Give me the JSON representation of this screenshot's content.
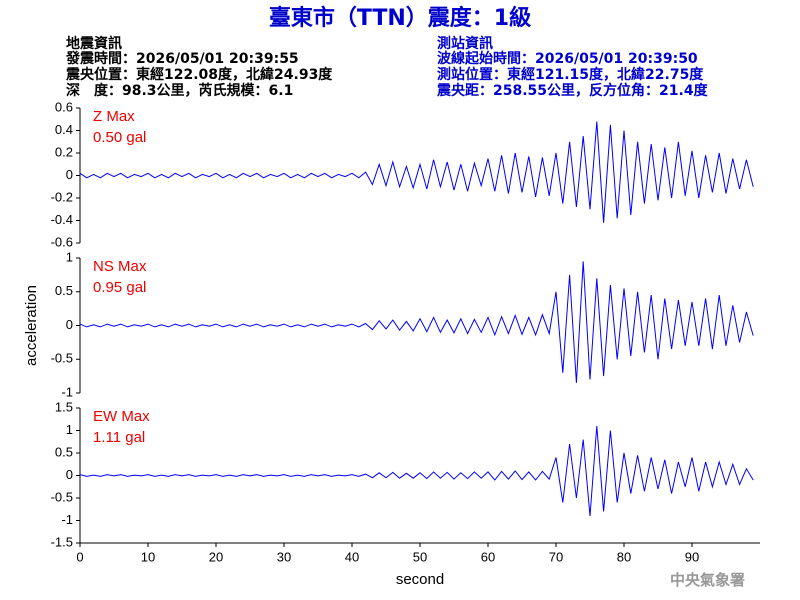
{
  "header": {
    "title": "臺東市（TTN）震度：1級",
    "left": [
      "地震資訊",
      "發震時間：2026/05/01 20:39:55",
      "震央位置：東經122.08度，北緯24.93度",
      "深　度：98.3公里，芮氏規模：6.1"
    ],
    "right": [
      "測站資訊",
      "波線起始時間：2026/05/01 20:39:50",
      "測站位置：東經121.15度，北緯22.75度",
      "震央距：258.55公里，反方位角：21.4度"
    ],
    "watermark": "中央氣象署"
  },
  "chart_data": [
    {
      "type": "line",
      "label": [
        "Z Max",
        "0.50 gal"
      ],
      "label_color": "#ee0000",
      "color": "#0000ff",
      "xlim": [
        0,
        100
      ],
      "ylim": [
        -0.6,
        0.6
      ],
      "yticks": [
        -0.6,
        -0.4,
        -0.2,
        0,
        0.2,
        0.4,
        0.6
      ],
      "x": [
        0,
        1,
        2,
        3,
        4,
        5,
        6,
        7,
        8,
        9,
        10,
        11,
        12,
        13,
        14,
        15,
        16,
        17,
        18,
        19,
        20,
        21,
        22,
        23,
        24,
        25,
        26,
        27,
        28,
        29,
        30,
        31,
        32,
        33,
        34,
        35,
        36,
        37,
        38,
        39,
        40,
        41,
        42,
        43,
        44,
        45,
        46,
        47,
        48,
        49,
        50,
        51,
        52,
        53,
        54,
        55,
        56,
        57,
        58,
        59,
        60,
        61,
        62,
        63,
        64,
        65,
        66,
        67,
        68,
        69,
        70,
        71,
        72,
        73,
        74,
        75,
        76,
        77,
        78,
        79,
        80,
        81,
        82,
        83,
        84,
        85,
        86,
        87,
        88,
        89,
        90,
        91,
        92,
        93,
        94,
        95,
        96,
        97,
        98,
        99
      ],
      "values": [
        0.02,
        -0.02,
        0.01,
        -0.02,
        0.02,
        -0.01,
        0.02,
        -0.02,
        0.01,
        -0.01,
        0.02,
        -0.02,
        0.01,
        -0.02,
        0.02,
        -0.01,
        0.02,
        -0.02,
        0.01,
        -0.01,
        0.02,
        -0.02,
        0.01,
        -0.02,
        0.02,
        -0.01,
        0.02,
        -0.02,
        0.01,
        -0.01,
        0.02,
        -0.02,
        0.01,
        -0.02,
        0.02,
        -0.01,
        0.02,
        -0.02,
        0.01,
        -0.01,
        0.02,
        -0.02,
        0.03,
        -0.08,
        0.1,
        -0.09,
        0.12,
        -0.1,
        0.08,
        -0.11,
        0.1,
        -0.12,
        0.14,
        -0.1,
        0.12,
        -0.13,
        0.1,
        -0.14,
        0.11,
        -0.09,
        0.15,
        -0.14,
        0.18,
        -0.16,
        0.2,
        -0.15,
        0.17,
        -0.19,
        0.16,
        -0.18,
        0.2,
        -0.25,
        0.3,
        -0.28,
        0.35,
        -0.3,
        0.48,
        -0.42,
        0.45,
        -0.38,
        0.4,
        -0.35,
        0.3,
        -0.25,
        0.28,
        -0.22,
        0.25,
        -0.2,
        0.3,
        -0.18,
        0.22,
        -0.2,
        0.18,
        -0.15,
        0.2,
        -0.16,
        0.15,
        -0.12,
        0.14,
        -0.1
      ]
    },
    {
      "type": "line",
      "label": [
        "NS Max",
        "0.95 gal"
      ],
      "label_color": "#ee0000",
      "color": "#0000ff",
      "ylabel": "acceleration",
      "xlim": [
        0,
        100
      ],
      "ylim": [
        -1,
        1
      ],
      "yticks": [
        -1,
        -0.5,
        0,
        0.5,
        1
      ],
      "x": [
        0,
        1,
        2,
        3,
        4,
        5,
        6,
        7,
        8,
        9,
        10,
        11,
        12,
        13,
        14,
        15,
        16,
        17,
        18,
        19,
        20,
        21,
        22,
        23,
        24,
        25,
        26,
        27,
        28,
        29,
        30,
        31,
        32,
        33,
        34,
        35,
        36,
        37,
        38,
        39,
        40,
        41,
        42,
        43,
        44,
        45,
        46,
        47,
        48,
        49,
        50,
        51,
        52,
        53,
        54,
        55,
        56,
        57,
        58,
        59,
        60,
        61,
        62,
        63,
        64,
        65,
        66,
        67,
        68,
        69,
        70,
        71,
        72,
        73,
        74,
        75,
        76,
        77,
        78,
        79,
        80,
        81,
        82,
        83,
        84,
        85,
        86,
        87,
        88,
        89,
        90,
        91,
        92,
        93,
        94,
        95,
        96,
        97,
        98,
        99
      ],
      "values": [
        0.02,
        -0.02,
        0.01,
        -0.02,
        0.02,
        -0.01,
        0.02,
        -0.02,
        0.01,
        -0.01,
        0.02,
        -0.02,
        0.01,
        -0.02,
        0.02,
        -0.01,
        0.02,
        -0.02,
        0.01,
        -0.01,
        0.02,
        -0.02,
        0.01,
        -0.02,
        0.02,
        -0.01,
        0.02,
        -0.02,
        0.01,
        -0.01,
        0.02,
        -0.02,
        0.01,
        -0.02,
        0.02,
        -0.01,
        0.02,
        -0.02,
        0.01,
        -0.01,
        0.02,
        -0.02,
        0.03,
        -0.06,
        0.07,
        -0.05,
        0.08,
        -0.07,
        0.06,
        -0.08,
        0.1,
        -0.09,
        0.12,
        -0.1,
        0.08,
        -0.11,
        0.1,
        -0.12,
        0.09,
        -0.1,
        0.12,
        -0.14,
        0.13,
        -0.12,
        0.15,
        -0.13,
        0.12,
        -0.14,
        0.16,
        -0.12,
        0.5,
        -0.7,
        0.75,
        -0.85,
        0.95,
        -0.8,
        0.7,
        -0.75,
        0.6,
        -0.5,
        0.55,
        -0.45,
        0.5,
        -0.4,
        0.45,
        -0.5,
        0.4,
        -0.35,
        0.38,
        -0.3,
        0.35,
        -0.3,
        0.4,
        -0.35,
        0.45,
        -0.3,
        0.3,
        -0.25,
        0.2,
        -0.15
      ]
    },
    {
      "type": "line",
      "label": [
        "EW Max",
        "1.11 gal"
      ],
      "label_color": "#ee0000",
      "color": "#0000ff",
      "xlabel": "second",
      "xlim": [
        0,
        100
      ],
      "xticks": [
        0,
        10,
        20,
        30,
        40,
        50,
        60,
        70,
        80,
        90
      ],
      "ylim": [
        -1.5,
        1.5
      ],
      "yticks": [
        -1.5,
        -1,
        -0.5,
        0,
        0.5,
        1,
        1.5
      ],
      "x": [
        0,
        1,
        2,
        3,
        4,
        5,
        6,
        7,
        8,
        9,
        10,
        11,
        12,
        13,
        14,
        15,
        16,
        17,
        18,
        19,
        20,
        21,
        22,
        23,
        24,
        25,
        26,
        27,
        28,
        29,
        30,
        31,
        32,
        33,
        34,
        35,
        36,
        37,
        38,
        39,
        40,
        41,
        42,
        43,
        44,
        45,
        46,
        47,
        48,
        49,
        50,
        51,
        52,
        53,
        54,
        55,
        56,
        57,
        58,
        59,
        60,
        61,
        62,
        63,
        64,
        65,
        66,
        67,
        68,
        69,
        70,
        71,
        72,
        73,
        74,
        75,
        76,
        77,
        78,
        79,
        80,
        81,
        82,
        83,
        84,
        85,
        86,
        87,
        88,
        89,
        90,
        91,
        92,
        93,
        94,
        95,
        96,
        97,
        98,
        99
      ],
      "values": [
        0.02,
        -0.02,
        0.01,
        -0.02,
        0.02,
        -0.01,
        0.02,
        -0.02,
        0.01,
        -0.01,
        0.02,
        -0.02,
        0.01,
        -0.02,
        0.02,
        -0.01,
        0.02,
        -0.02,
        0.01,
        -0.01,
        0.02,
        -0.02,
        0.01,
        -0.02,
        0.02,
        -0.01,
        0.02,
        -0.02,
        0.01,
        -0.01,
        0.02,
        -0.02,
        0.01,
        -0.02,
        0.02,
        -0.01,
        0.02,
        -0.02,
        0.01,
        -0.01,
        0.02,
        -0.02,
        0.03,
        -0.05,
        0.06,
        -0.05,
        0.07,
        -0.06,
        0.05,
        -0.06,
        0.06,
        -0.07,
        0.08,
        -0.06,
        0.07,
        -0.08,
        0.06,
        -0.07,
        0.08,
        -0.06,
        0.08,
        -0.1,
        0.09,
        -0.08,
        0.1,
        -0.09,
        0.08,
        -0.1,
        0.09,
        -0.08,
        0.4,
        -0.6,
        0.7,
        -0.5,
        0.8,
        -0.9,
        1.1,
        -0.8,
        1.0,
        -0.6,
        0.5,
        -0.4,
        0.45,
        -0.35,
        0.4,
        -0.3,
        0.35,
        -0.4,
        0.3,
        -0.25,
        0.4,
        -0.35,
        0.3,
        -0.25,
        0.3,
        -0.2,
        0.25,
        -0.2,
        0.15,
        -0.1
      ]
    }
  ]
}
